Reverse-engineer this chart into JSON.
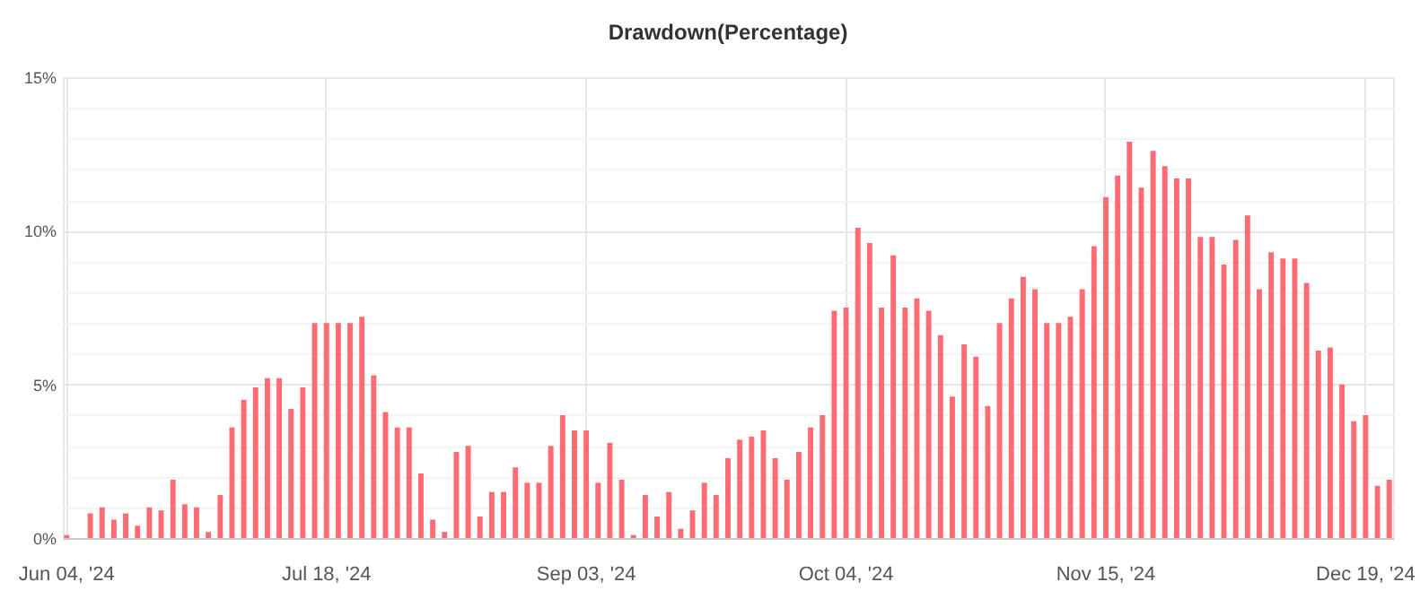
{
  "chart_data": {
    "type": "bar",
    "title": "Drawdown(Percentage)",
    "categories": [
      "Jun 04, '24",
      null,
      null,
      null,
      null,
      null,
      null,
      null,
      null,
      null,
      null,
      null,
      null,
      null,
      null,
      null,
      null,
      null,
      null,
      null,
      null,
      null,
      "Jul 18, '24",
      null,
      null,
      null,
      null,
      null,
      null,
      null,
      null,
      null,
      null,
      null,
      null,
      null,
      null,
      null,
      null,
      null,
      null,
      null,
      null,
      null,
      "Sep 03, '24",
      null,
      null,
      null,
      null,
      null,
      null,
      null,
      null,
      null,
      null,
      null,
      null,
      null,
      null,
      null,
      null,
      null,
      null,
      null,
      null,
      null,
      "Oct 04, '24",
      null,
      null,
      null,
      null,
      null,
      null,
      null,
      null,
      null,
      null,
      null,
      null,
      null,
      null,
      null,
      null,
      null,
      null,
      null,
      null,
      null,
      "Nov 15, '24",
      null,
      null,
      null,
      null,
      null,
      null,
      null,
      null,
      null,
      null,
      null,
      null,
      null,
      null,
      null,
      null,
      null,
      null,
      null,
      null,
      null,
      "Dec 19, '24",
      null,
      null
    ],
    "values": [
      0.1,
      0,
      0.8,
      1.0,
      0.6,
      0.8,
      0.4,
      1.0,
      0.9,
      1.9,
      1.1,
      1.0,
      0.2,
      1.4,
      3.6,
      4.5,
      4.9,
      5.2,
      5.2,
      4.2,
      4.9,
      7.0,
      7.0,
      7.0,
      7.0,
      7.2,
      5.3,
      4.1,
      3.6,
      3.6,
      2.1,
      0.6,
      0.2,
      2.8,
      3.0,
      0.7,
      1.5,
      1.5,
      2.3,
      1.8,
      1.8,
      3.0,
      4.0,
      3.5,
      3.5,
      1.8,
      3.1,
      1.9,
      0.1,
      1.4,
      0.7,
      1.5,
      0.3,
      0.9,
      1.8,
      1.4,
      2.6,
      3.2,
      3.3,
      3.5,
      2.6,
      1.9,
      2.8,
      3.6,
      4.0,
      7.4,
      7.5,
      10.1,
      9.6,
      7.5,
      9.2,
      7.5,
      7.8,
      7.4,
      6.6,
      4.6,
      6.3,
      5.9,
      4.3,
      7.0,
      7.8,
      8.5,
      8.1,
      7.0,
      7.0,
      7.2,
      8.1,
      9.5,
      11.1,
      11.8,
      12.9,
      11.4,
      12.6,
      12.1,
      11.7,
      11.7,
      9.8,
      9.8,
      8.9,
      9.7,
      10.5,
      8.1,
      9.3,
      9.1,
      9.1,
      8.3,
      6.1,
      6.2,
      5.0,
      3.8,
      4.0,
      1.7,
      1.9
    ],
    "color": "#ff6b72",
    "ylim": [
      0,
      15
    ],
    "yticks": [
      {
        "value": 0,
        "label": "0%"
      },
      {
        "value": 1,
        "label": null
      },
      {
        "value": 2,
        "label": null
      },
      {
        "value": 3,
        "label": null
      },
      {
        "value": 4,
        "label": null
      },
      {
        "value": 5,
        "label": "5%"
      },
      {
        "value": 6,
        "label": null
      },
      {
        "value": 7,
        "label": null
      },
      {
        "value": 8,
        "label": null
      },
      {
        "value": 9,
        "label": null
      },
      {
        "value": 10,
        "label": "10%"
      },
      {
        "value": 11,
        "label": null
      },
      {
        "value": 12,
        "label": null
      },
      {
        "value": 13,
        "label": null
      },
      {
        "value": 14,
        "label": null
      },
      {
        "value": 15,
        "label": "15%"
      }
    ],
    "grid": true
  }
}
